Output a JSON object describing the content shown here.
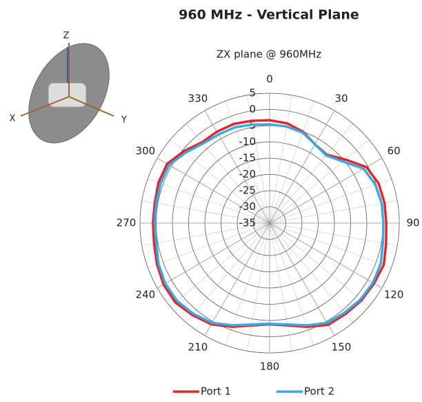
{
  "chart_data": {
    "type": "polar",
    "title": "960 MHz - Vertical Plane",
    "subtitle": "ZX plane @ 960MHz",
    "annotations": [
      "Z",
      "X",
      "Y"
    ],
    "x": [
      0,
      10,
      20,
      30,
      40,
      50,
      60,
      70,
      80,
      90,
      100,
      110,
      120,
      130,
      140,
      150,
      160,
      170,
      180,
      190,
      200,
      210,
      220,
      230,
      240,
      250,
      260,
      270,
      280,
      290,
      300,
      310,
      320,
      330,
      340,
      350
    ],
    "xlim": [
      0,
      360
    ],
    "xticks": [
      0,
      30,
      60,
      90,
      120,
      150,
      180,
      210,
      240,
      270,
      300,
      330
    ],
    "ylim": [
      -35,
      5
    ],
    "yticks": [
      5,
      0,
      -5,
      -10,
      -15,
      -20,
      -25,
      -30,
      -35
    ],
    "grid": true,
    "legend": "bottom",
    "series": [
      {
        "name": "Port 1",
        "color": "#e3262b",
        "values": [
          -3.3,
          -3.8,
          -5,
          -7,
          -7.5,
          -4.5,
          -0.5,
          0.8,
          1.0,
          1.0,
          1.5,
          2.5,
          2.2,
          2.0,
          1.5,
          1.2,
          -1,
          -3,
          -3.8,
          -3,
          -1,
          1,
          2,
          3,
          2.8,
          2,
          1.2,
          1,
          1,
          1.5,
          1.5,
          -0.5,
          -2.5,
          -2.5,
          -2.5,
          -3
        ]
      },
      {
        "name": "Port 2",
        "color": "#3aa9e0",
        "values": [
          -4.6,
          -4.8,
          -5.3,
          -7,
          -7.8,
          -5.5,
          -1.5,
          -0.3,
          0.1,
          0.1,
          0.5,
          1.5,
          1.8,
          1.6,
          1.0,
          0.5,
          -1.5,
          -3.3,
          -4,
          -3.3,
          -1.5,
          0.5,
          1.5,
          2.3,
          2.2,
          1.5,
          0.5,
          0.5,
          0.5,
          0.8,
          0.8,
          -1.2,
          -3,
          -3.5,
          -3.6,
          -4.2
        ]
      }
    ]
  }
}
